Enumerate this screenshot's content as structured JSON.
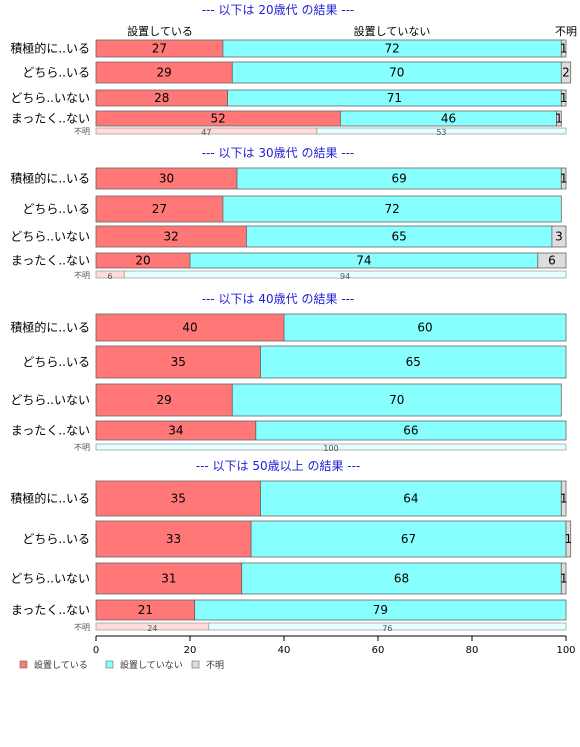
{
  "chart_data": {
    "type": "bar",
    "orientation": "horizontal",
    "stacked": true,
    "legend": {
      "placement": "bottom-left",
      "entries": [
        {
          "label": "設置している",
          "color": "#ff7777"
        },
        {
          "label": "設置していない",
          "color": "#88ffff"
        },
        {
          "label": "不明",
          "color": "#dddddd"
        }
      ]
    },
    "column_labels": [
      "設置している",
      "設置していない",
      "不明"
    ],
    "xlim": [
      0,
      100
    ],
    "xticks": [
      "0",
      "20",
      "40",
      "60",
      "80",
      "100"
    ],
    "panels": [
      {
        "title": "--- 以下は 20歳代 の結果 ---",
        "rows": [
          {
            "label": "積極的に..いる",
            "values": [
              27,
              72,
              1
            ]
          },
          {
            "label": "どちら..いる",
            "values": [
              29,
              70,
              2
            ]
          },
          {
            "label": "どちら..いない",
            "values": [
              28,
              71,
              1
            ]
          },
          {
            "label": "まったく..ない",
            "values": [
              52,
              46,
              1
            ]
          }
        ],
        "unknown": {
          "label": "不明",
          "values": [
            47,
            53
          ]
        }
      },
      {
        "title": "--- 以下は 30歳代 の結果 ---",
        "rows": [
          {
            "label": "積極的に..いる",
            "values": [
              30,
              69,
              1
            ]
          },
          {
            "label": "どちら..いる",
            "values": [
              27,
              72,
              0
            ]
          },
          {
            "label": "どちら..いない",
            "values": [
              32,
              65,
              3
            ]
          },
          {
            "label": "まったく..ない",
            "values": [
              20,
              74,
              6
            ]
          }
        ],
        "unknown": {
          "label": "不明",
          "values": [
            6,
            94
          ]
        }
      },
      {
        "title": "--- 以下は 40歳代 の結果 ---",
        "rows": [
          {
            "label": "積極的に..いる",
            "values": [
              40,
              60,
              0
            ]
          },
          {
            "label": "どちら..いる",
            "values": [
              35,
              65,
              0
            ]
          },
          {
            "label": "どちら..いない",
            "values": [
              29,
              70,
              0
            ]
          },
          {
            "label": "まったく..ない",
            "values": [
              34,
              66,
              0
            ]
          }
        ],
        "unknown": {
          "label": "不明",
          "values": [
            0,
            100
          ]
        }
      },
      {
        "title": "--- 以下は 50歳以上 の結果 ---",
        "rows": [
          {
            "label": "積極的に..いる",
            "values": [
              35,
              64,
              1
            ]
          },
          {
            "label": "どちら..いる",
            "values": [
              33,
              67,
              1
            ]
          },
          {
            "label": "どちら..いない",
            "values": [
              31,
              68,
              1
            ]
          },
          {
            "label": "まったく..ない",
            "values": [
              21,
              79,
              0
            ]
          }
        ],
        "unknown": {
          "label": "不明",
          "values": [
            24,
            76
          ]
        }
      }
    ]
  }
}
